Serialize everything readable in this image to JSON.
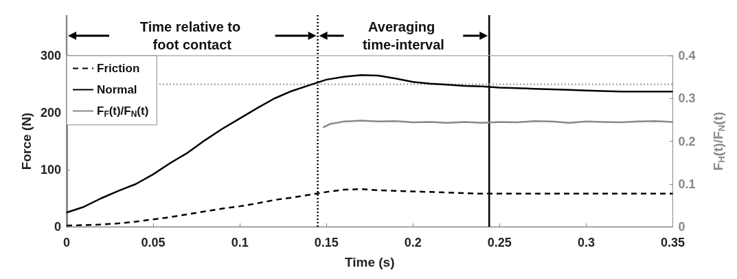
{
  "chart_data": {
    "type": "line",
    "xlabel": "Time (s)",
    "ylabel": "Force (N)",
    "y2label": "F$_{H}$(t)/F$_{N}$(t)",
    "xlim": [
      0,
      0.35
    ],
    "xticks": [
      0,
      0.05,
      0.1,
      0.15,
      0.2,
      0.25,
      0.3,
      0.35
    ],
    "ylim": [
      0,
      300
    ],
    "yticks": [
      0,
      100,
      200,
      300
    ],
    "y2lim": [
      0,
      0.4
    ],
    "y2ticks": [
      0,
      0.1,
      0.2,
      0.3,
      0.4
    ],
    "grid": false,
    "legend": "top left",
    "marker": "none",
    "series": [
      {
        "name": "Friction",
        "color": "#000000",
        "line_style": "dashed",
        "x": [
          0,
          0.01,
          0.02,
          0.03,
          0.04,
          0.05,
          0.06,
          0.07,
          0.08,
          0.09,
          0.1,
          0.11,
          0.12,
          0.13,
          0.14,
          0.15,
          0.16,
          0.17,
          0.18,
          0.19,
          0.2,
          0.21,
          0.22,
          0.23,
          0.24,
          0.25,
          0.26,
          0.27,
          0.28,
          0.29,
          0.3,
          0.31,
          0.32,
          0.33,
          0.34,
          0.35
        ],
        "values": [
          2,
          3,
          4,
          6,
          9,
          13,
          17,
          22,
          27,
          32,
          36,
          41,
          47,
          51,
          56,
          61,
          65,
          66,
          64,
          63,
          62,
          61,
          60,
          59,
          58,
          58,
          58,
          58,
          58,
          58,
          58,
          58,
          58,
          58,
          58,
          58
        ]
      },
      {
        "name": "Normal",
        "color": "#000000",
        "line_style": "solid",
        "x": [
          0,
          0.01,
          0.02,
          0.03,
          0.04,
          0.05,
          0.06,
          0.07,
          0.08,
          0.09,
          0.1,
          0.11,
          0.12,
          0.13,
          0.14,
          0.15,
          0.16,
          0.17,
          0.18,
          0.19,
          0.2,
          0.21,
          0.22,
          0.23,
          0.24,
          0.25,
          0.26,
          0.27,
          0.28,
          0.29,
          0.3,
          0.31,
          0.32,
          0.33,
          0.34,
          0.35
        ],
        "values": [
          25,
          35,
          50,
          63,
          75,
          92,
          112,
          130,
          152,
          172,
          190,
          208,
          225,
          238,
          248,
          258,
          263,
          266,
          265,
          260,
          254,
          251,
          249,
          247,
          246,
          244,
          243,
          242,
          241,
          240,
          239,
          238,
          237,
          237,
          237,
          237
        ]
      },
      {
        "name": "F$_{F}$(t)/F$_{N}$(t)",
        "color": "#888888",
        "line_style": "solid",
        "axis": "y2",
        "x": [
          0.148,
          0.152,
          0.16,
          0.17,
          0.18,
          0.19,
          0.2,
          0.21,
          0.22,
          0.23,
          0.24,
          0.25,
          0.26,
          0.27,
          0.28,
          0.29,
          0.3,
          0.31,
          0.32,
          0.33,
          0.34,
          0.35
        ],
        "values": [
          0.232,
          0.24,
          0.246,
          0.248,
          0.246,
          0.247,
          0.244,
          0.245,
          0.243,
          0.245,
          0.243,
          0.245,
          0.244,
          0.247,
          0.246,
          0.243,
          0.246,
          0.245,
          0.244,
          0.246,
          0.247,
          0.245
        ]
      }
    ],
    "ref_lines": [
      {
        "axis": "x",
        "value": 0.145,
        "line_style": "dotted",
        "color": "#000000"
      },
      {
        "axis": "x",
        "value": 0.244,
        "line_style": "solid",
        "color": "#000000"
      },
      {
        "axis": "y2",
        "value": 0.333,
        "line_style": "dotted",
        "color": "#aaaaaa"
      }
    ],
    "annotations": [
      "Time relative to foot contact",
      "Averaging time-interval"
    ]
  }
}
